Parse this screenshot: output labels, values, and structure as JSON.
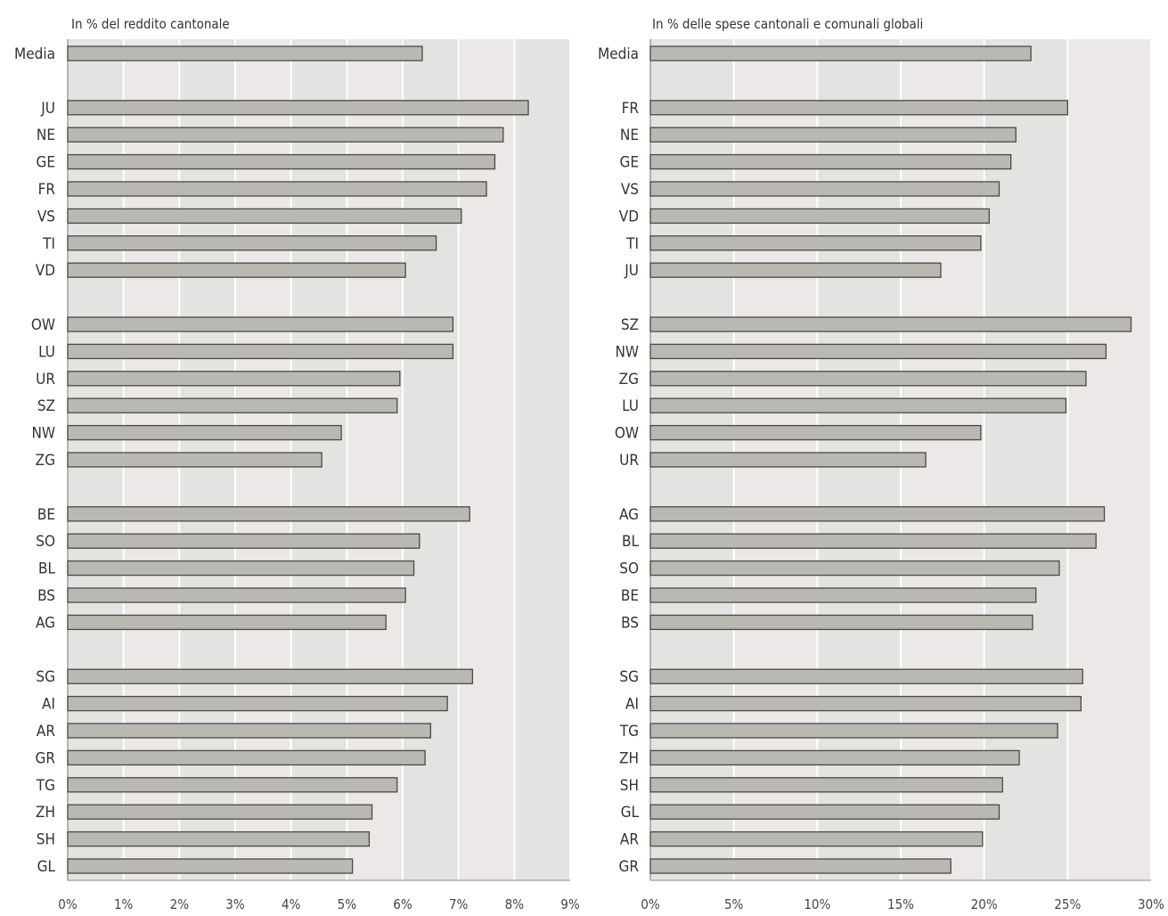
{
  "colors": {
    "bar_fill": "#b9b9b2",
    "bar_stroke": "#4a4a44",
    "band_a": "#e3e3e1",
    "band_b": "#ebe8e7",
    "text": "#333333"
  },
  "chart_data": [
    {
      "type": "bar",
      "orientation": "horizontal",
      "title": "In % del reddito cantonale",
      "xlabel": "",
      "ylabel": "",
      "xlim": [
        0,
        9
      ],
      "grid": true,
      "x_ticks": [
        "0%",
        "1%",
        "2%",
        "3%",
        "4%",
        "5%",
        "6%",
        "7%",
        "8%",
        "9%"
      ],
      "groups": [
        {
          "categories": [
            "Media"
          ],
          "values": [
            6.35
          ]
        },
        {
          "categories": [
            "JU",
            "NE",
            "GE",
            "FR",
            "VS",
            "TI",
            "VD"
          ],
          "values": [
            8.25,
            7.8,
            7.65,
            7.5,
            7.05,
            6.6,
            6.05
          ]
        },
        {
          "categories": [
            "OW",
            "LU",
            "UR",
            "SZ",
            "NW",
            "ZG"
          ],
          "values": [
            6.9,
            6.9,
            5.95,
            5.9,
            4.9,
            4.55
          ]
        },
        {
          "categories": [
            "BE",
            "SO",
            "BL",
            "BS",
            "AG"
          ],
          "values": [
            7.2,
            6.3,
            6.2,
            6.05,
            5.7
          ]
        },
        {
          "categories": [
            "SG",
            "AI",
            "AR",
            "GR",
            "TG",
            "ZH",
            "SH",
            "GL"
          ],
          "values": [
            7.25,
            6.8,
            6.5,
            6.4,
            5.9,
            5.45,
            5.4,
            5.1
          ]
        }
      ]
    },
    {
      "type": "bar",
      "orientation": "horizontal",
      "title": "In % delle spese cantonali e comunali globali",
      "xlabel": "",
      "ylabel": "",
      "xlim": [
        0,
        30
      ],
      "grid": true,
      "x_ticks": [
        "0%",
        "5%",
        "10%",
        "15%",
        "20%",
        "25%",
        "30%"
      ],
      "groups": [
        {
          "categories": [
            "Media"
          ],
          "values": [
            22.8
          ]
        },
        {
          "categories": [
            "FR",
            "NE",
            "GE",
            "VS",
            "VD",
            "TI",
            "JU"
          ],
          "values": [
            25.0,
            21.9,
            21.6,
            20.9,
            20.3,
            19.8,
            17.4
          ]
        },
        {
          "categories": [
            "SZ",
            "NW",
            "ZG",
            "LU",
            "OW",
            "UR"
          ],
          "values": [
            28.8,
            27.3,
            26.1,
            24.9,
            19.8,
            16.5
          ]
        },
        {
          "categories": [
            "AG",
            "BL",
            "SO",
            "BE",
            "BS"
          ],
          "values": [
            27.2,
            26.7,
            24.5,
            23.1,
            22.9
          ]
        },
        {
          "categories": [
            "SG",
            "AI",
            "TG",
            "ZH",
            "SH",
            "GL",
            "AR",
            "GR"
          ],
          "values": [
            25.9,
            25.8,
            24.4,
            22.1,
            21.1,
            20.9,
            19.9,
            18.0
          ]
        }
      ]
    }
  ]
}
